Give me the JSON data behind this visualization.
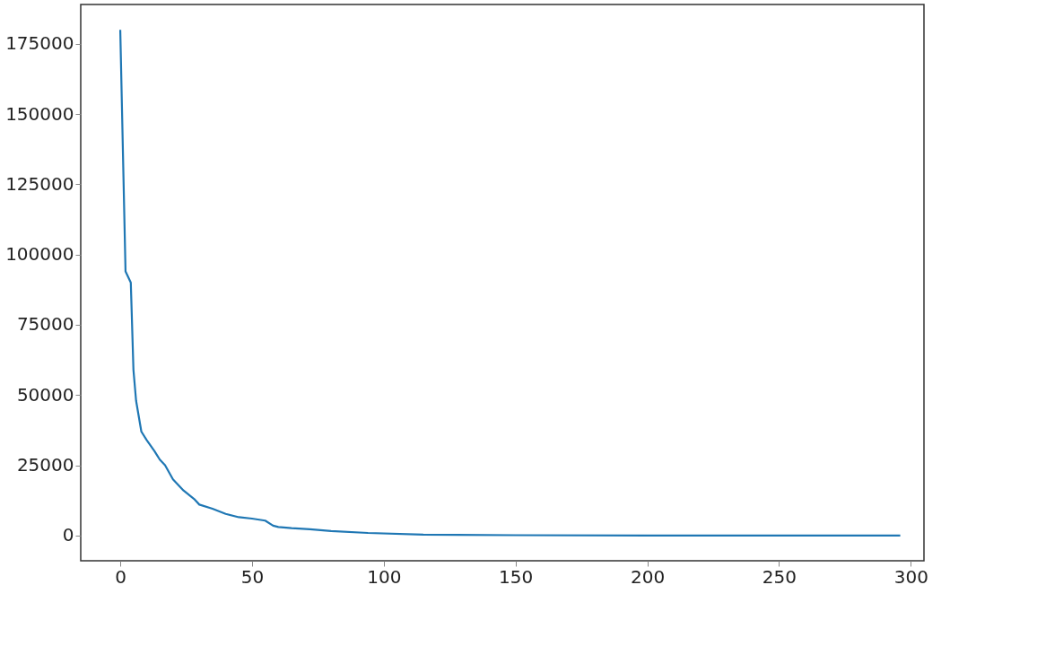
{
  "chart_data": {
    "type": "line",
    "x": [
      0,
      2,
      4,
      5,
      6,
      8,
      10,
      13,
      15,
      17,
      20,
      24,
      28,
      30,
      35,
      40,
      45,
      50,
      55,
      58,
      60,
      65,
      72,
      80,
      94,
      115,
      150,
      200,
      250,
      296
    ],
    "series": [
      {
        "color": "#1f77b4",
        "values": [
          180000,
          94000,
          90000,
          59000,
          48000,
          37000,
          34000,
          30000,
          27000,
          25000,
          20000,
          16000,
          13000,
          11000,
          9500,
          7700,
          6500,
          6000,
          5300,
          3500,
          3000,
          2600,
          2200,
          1600,
          900,
          300,
          100,
          0,
          0,
          0
        ]
      }
    ],
    "xlim": [
      -15,
      305
    ],
    "xticks": [
      0,
      50,
      100,
      150,
      200,
      250,
      300
    ],
    "ylim": [
      -9000,
      189000
    ],
    "yticks": [
      0,
      25000,
      50000,
      75000,
      100000,
      125000,
      150000,
      175000
    ],
    "grid": false,
    "marker": "none",
    "line_style": "solid"
  }
}
